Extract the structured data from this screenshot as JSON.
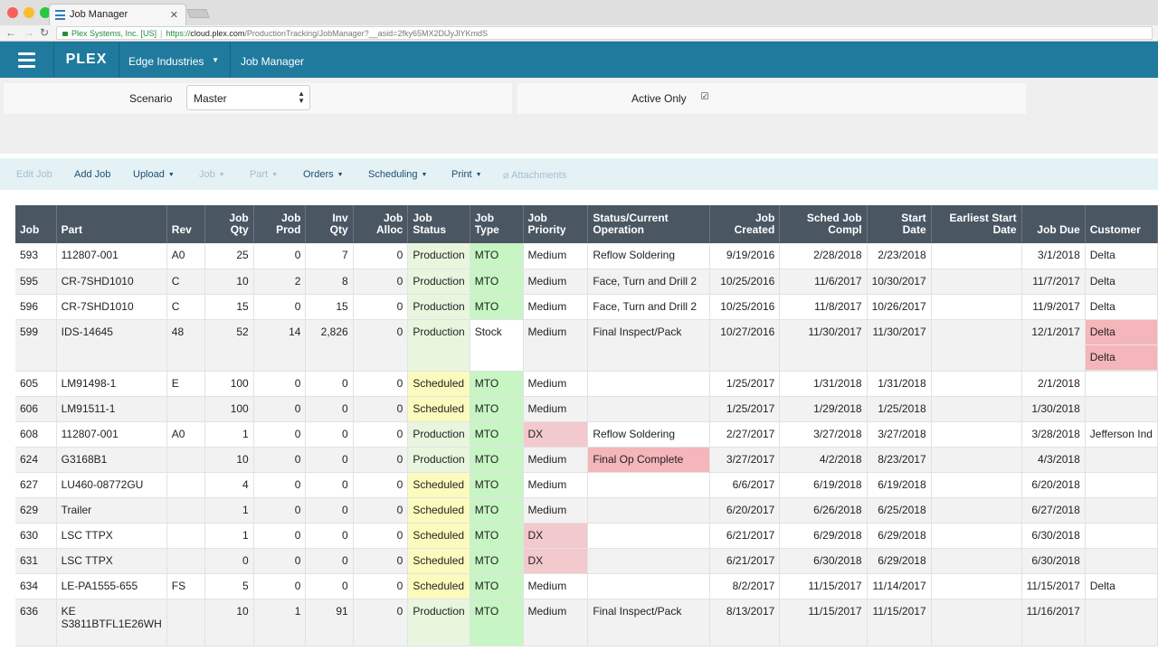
{
  "browser": {
    "tab_title": "Job Manager",
    "url_site": "Plex Systems, Inc. [US]",
    "url_proto": "https://",
    "url_host": "cloud.plex.com",
    "url_path": "/ProductionTracking/JobManager?__asid=2fky65MX2DlJyJlYKmdS"
  },
  "header": {
    "logo": "PLEX",
    "company": "Edge Industries",
    "title": "Job Manager"
  },
  "filters": {
    "scenario_label": "Scenario",
    "scenario_value": "Master",
    "active_only_label": "Active Only",
    "active_only_checked": true
  },
  "toolbar": {
    "edit_job": "Edit Job",
    "add_job": "Add Job",
    "upload": "Upload",
    "job": "Job",
    "part": "Part",
    "orders": "Orders",
    "scheduling": "Scheduling",
    "print": "Print",
    "attachments": "Attachments"
  },
  "columns": {
    "job": "Job",
    "part": "Part",
    "rev": "Rev",
    "job_qty_1": "Job",
    "job_qty_2": "Qty",
    "job_prod_1": "Job",
    "job_prod_2": "Prod",
    "inv_qty_1": "Inv",
    "inv_qty_2": "Qty",
    "job_alloc_1": "Job",
    "job_alloc_2": "Alloc",
    "job_status_1": "Job",
    "job_status_2": "Status",
    "job_type_1": "Job",
    "job_type_2": "Type",
    "job_priority_1": "Job",
    "job_priority_2": "Priority",
    "status_op_1": "Status/Current",
    "status_op_2": "Operation",
    "job_created_1": "Job",
    "job_created_2": "Created",
    "sched_compl_1": "Sched Job",
    "sched_compl_2": "Compl",
    "start_date_1": "Start",
    "start_date_2": "Date",
    "earliest_start_1": "Earliest Start",
    "earliest_start_2": "Date",
    "job_due": "Job Due",
    "customer": "Customer"
  },
  "rows": [
    {
      "job": "593",
      "part": "112807-001",
      "rev": "A0",
      "qty": "25",
      "prod": "0",
      "inv": "7",
      "alloc": "0",
      "status": "Production",
      "type": "MTO",
      "priority": "Medium",
      "operation": "Reflow Soldering",
      "created": "9/19/2016",
      "compl": "2/28/2018",
      "start": "2/23/2018",
      "earliest": "",
      "due": "3/1/2018",
      "customer": "Delta"
    },
    {
      "job": "595",
      "part": "CR-7SHD1010",
      "rev": "C",
      "qty": "10",
      "prod": "2",
      "inv": "8",
      "alloc": "0",
      "status": "Production",
      "type": "MTO",
      "priority": "Medium",
      "operation": "Face, Turn and Drill 2",
      "created": "10/25/2016",
      "compl": "11/6/2017",
      "start": "10/30/2017",
      "earliest": "",
      "due": "11/7/2017",
      "customer": "Delta"
    },
    {
      "job": "596",
      "part": "CR-7SHD1010",
      "rev": "C",
      "qty": "15",
      "prod": "0",
      "inv": "15",
      "alloc": "0",
      "status": "Production",
      "type": "MTO",
      "priority": "Medium",
      "operation": "Face, Turn and Drill 2",
      "created": "10/25/2016",
      "compl": "11/8/2017",
      "start": "10/26/2017",
      "earliest": "",
      "due": "11/9/2017",
      "customer": "Delta"
    },
    {
      "job": "599",
      "part": "IDS-14645",
      "rev": "48",
      "qty": "52",
      "prod": "14",
      "inv": "2,826",
      "alloc": "0",
      "status": "Production",
      "type": "Stock",
      "priority": "Medium",
      "operation": "Final Inspect/Pack",
      "created": "10/27/2016",
      "compl": "11/30/2017",
      "start": "11/30/2017",
      "earliest": "",
      "due": "12/1/2017",
      "customer": "Delta",
      "customer2": "Delta"
    },
    {
      "job": "605",
      "part": "LM91498-1",
      "rev": "E",
      "qty": "100",
      "prod": "0",
      "inv": "0",
      "alloc": "0",
      "status": "Scheduled",
      "type": "MTO",
      "priority": "Medium",
      "operation": "",
      "created": "1/25/2017",
      "compl": "1/31/2018",
      "start": "1/31/2018",
      "earliest": "",
      "due": "2/1/2018",
      "customer": ""
    },
    {
      "job": "606",
      "part": "LM91511-1",
      "rev": "",
      "qty": "100",
      "prod": "0",
      "inv": "0",
      "alloc": "0",
      "status": "Scheduled",
      "type": "MTO",
      "priority": "Medium",
      "operation": "",
      "created": "1/25/2017",
      "compl": "1/29/2018",
      "start": "1/25/2018",
      "earliest": "",
      "due": "1/30/2018",
      "customer": ""
    },
    {
      "job": "608",
      "part": "112807-001",
      "rev": "A0",
      "qty": "1",
      "prod": "0",
      "inv": "0",
      "alloc": "0",
      "status": "Production",
      "type": "MTO",
      "priority": "DX",
      "operation": "Reflow Soldering",
      "created": "2/27/2017",
      "compl": "3/27/2018",
      "start": "3/27/2018",
      "earliest": "",
      "due": "3/28/2018",
      "customer": "Jefferson Ind"
    },
    {
      "job": "624",
      "part": "G3168B1",
      "rev": "",
      "qty": "10",
      "prod": "0",
      "inv": "0",
      "alloc": "0",
      "status": "Production",
      "type": "MTO",
      "priority": "Medium",
      "operation": "Final Op Complete",
      "created": "3/27/2017",
      "compl": "4/2/2018",
      "start": "8/23/2017",
      "earliest": "",
      "due": "4/3/2018",
      "customer": ""
    },
    {
      "job": "627",
      "part": "LU460-08772GU",
      "rev": "",
      "qty": "4",
      "prod": "0",
      "inv": "0",
      "alloc": "0",
      "status": "Scheduled",
      "type": "MTO",
      "priority": "Medium",
      "operation": "",
      "created": "6/6/2017",
      "compl": "6/19/2018",
      "start": "6/19/2018",
      "earliest": "",
      "due": "6/20/2018",
      "customer": ""
    },
    {
      "job": "629",
      "part": "Trailer",
      "rev": "",
      "qty": "1",
      "prod": "0",
      "inv": "0",
      "alloc": "0",
      "status": "Scheduled",
      "type": "MTO",
      "priority": "Medium",
      "operation": "",
      "created": "6/20/2017",
      "compl": "6/26/2018",
      "start": "6/25/2018",
      "earliest": "",
      "due": "6/27/2018",
      "customer": ""
    },
    {
      "job": "630",
      "part": "LSC TTPX",
      "rev": "",
      "qty": "1",
      "prod": "0",
      "inv": "0",
      "alloc": "0",
      "status": "Scheduled",
      "type": "MTO",
      "priority": "DX",
      "operation": "",
      "created": "6/21/2017",
      "compl": "6/29/2018",
      "start": "6/29/2018",
      "earliest": "",
      "due": "6/30/2018",
      "customer": ""
    },
    {
      "job": "631",
      "part": "LSC TTPX",
      "rev": "",
      "qty": "0",
      "prod": "0",
      "inv": "0",
      "alloc": "0",
      "status": "Scheduled",
      "type": "MTO",
      "priority": "DX",
      "operation": "",
      "created": "6/21/2017",
      "compl": "6/30/2018",
      "start": "6/29/2018",
      "earliest": "",
      "due": "6/30/2018",
      "customer": ""
    },
    {
      "job": "634",
      "part": "LE-PA1555-655",
      "rev": "FS",
      "qty": "5",
      "prod": "0",
      "inv": "0",
      "alloc": "0",
      "status": "Scheduled",
      "type": "MTO",
      "priority": "Medium",
      "operation": "",
      "created": "8/2/2017",
      "compl": "11/15/2017",
      "start": "11/14/2017",
      "earliest": "",
      "due": "11/15/2017",
      "customer": "Delta"
    },
    {
      "job": "636",
      "part": "KE S3811BTFL1E26WH",
      "rev": "",
      "qty": "10",
      "prod": "1",
      "inv": "91",
      "alloc": "0",
      "status": "Production",
      "type": "MTO",
      "priority": "Medium",
      "operation": "Final Inspect/Pack",
      "created": "8/13/2017",
      "compl": "11/15/2017",
      "start": "11/15/2017",
      "earliest": "",
      "due": "11/16/2017",
      "customer": ""
    }
  ]
}
